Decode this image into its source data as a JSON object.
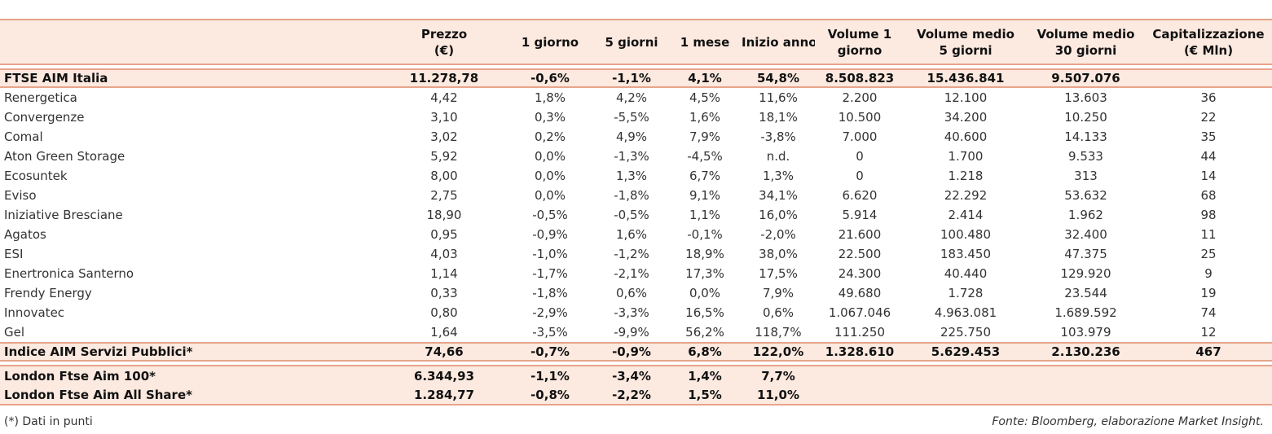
{
  "headers": [
    "",
    "Prezzo\n(€)",
    "1 giorno",
    "5 giorni",
    "1 mese",
    "Inizio anno",
    "Volume 1\ngiorno",
    "Volume medio\n5 giorni",
    "Volume medio\n30 giorni",
    "Capitalizzazione\n(€ Mln)"
  ],
  "index_top": [
    "FTSE AIM Italia",
    "11.278,78",
    "-0,6%",
    "-1,1%",
    "4,1%",
    "54,8%",
    "8.508.823",
    "15.436.841",
    "9.507.076",
    ""
  ],
  "rows": [
    [
      "Renergetica",
      "4,42",
      "1,8%",
      "4,2%",
      "4,5%",
      "11,6%",
      "2.200",
      "12.100",
      "13.603",
      "36"
    ],
    [
      "Convergenze",
      "3,10",
      "0,3%",
      "-5,5%",
      "1,6%",
      "18,1%",
      "10.500",
      "34.200",
      "10.250",
      "22"
    ],
    [
      "Comal",
      "3,02",
      "0,2%",
      "4,9%",
      "7,9%",
      "-3,8%",
      "7.000",
      "40.600",
      "14.133",
      "35"
    ],
    [
      "Aton Green Storage",
      "5,92",
      "0,0%",
      "-1,3%",
      "-4,5%",
      "n.d.",
      "0",
      "1.700",
      "9.533",
      "44"
    ],
    [
      "Ecosuntek",
      "8,00",
      "0,0%",
      "1,3%",
      "6,7%",
      "1,3%",
      "0",
      "1.218",
      "313",
      "14"
    ],
    [
      "Eviso",
      "2,75",
      "0,0%",
      "-1,8%",
      "9,1%",
      "34,1%",
      "6.620",
      "22.292",
      "53.632",
      "68"
    ],
    [
      "Iniziative Bresciane",
      "18,90",
      "-0,5%",
      "-0,5%",
      "1,1%",
      "16,0%",
      "5.914",
      "2.414",
      "1.962",
      "98"
    ],
    [
      "Agatos",
      "0,95",
      "-0,9%",
      "1,6%",
      "-0,1%",
      "-2,0%",
      "21.600",
      "100.480",
      "32.400",
      "11"
    ],
    [
      "ESI",
      "4,03",
      "-1,0%",
      "-1,2%",
      "18,9%",
      "38,0%",
      "22.500",
      "183.450",
      "47.375",
      "25"
    ],
    [
      "Enertronica Santerno",
      "1,14",
      "-1,7%",
      "-2,1%",
      "17,3%",
      "17,5%",
      "24.300",
      "40.440",
      "129.920",
      "9"
    ],
    [
      "Frendy Energy",
      "0,33",
      "-1,8%",
      "0,6%",
      "0,0%",
      "7,9%",
      "49.680",
      "1.728",
      "23.544",
      "19"
    ],
    [
      "Innovatec",
      "0,80",
      "-2,9%",
      "-3,3%",
      "16,5%",
      "0,6%",
      "1.067.046",
      "4.963.081",
      "1.689.592",
      "74"
    ],
    [
      "Gel",
      "1,64",
      "-3,5%",
      "-9,9%",
      "56,2%",
      "118,7%",
      "111.250",
      "225.750",
      "103.979",
      "12"
    ]
  ],
  "index_sector": [
    "Indice AIM Servizi Pubblici*",
    "74,66",
    "-0,7%",
    "-0,9%",
    "6,8%",
    "122,0%",
    "1.328.610",
    "5.629.453",
    "2.130.236",
    "467"
  ],
  "london": [
    [
      "London Ftse Aim 100*",
      "6.344,93",
      "-1,1%",
      "-3,4%",
      "1,4%",
      "7,7%",
      "",
      "",
      "",
      ""
    ],
    [
      "London Ftse Aim All Share*",
      "1.284,77",
      "-0,8%",
      "-2,2%",
      "1,5%",
      "11,0%",
      "",
      "",
      "",
      ""
    ]
  ],
  "footnote": "(*) Dati in punti",
  "source": "Fonte: Bloomberg, elaborazione Market Insight.",
  "colors": {
    "accent_line": "#e8a48a",
    "band_fill": "#fce9e0"
  }
}
